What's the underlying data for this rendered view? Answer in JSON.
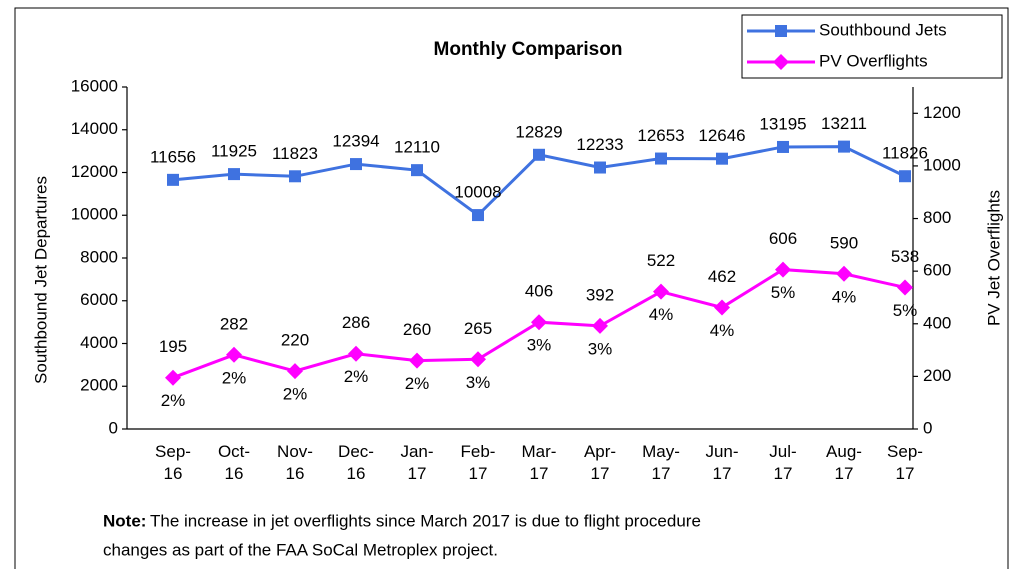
{
  "chart_data": {
    "type": "line",
    "title": "Monthly Comparison",
    "categories": [
      "Sep-16",
      "Oct-16",
      "Nov-16",
      "Dec-16",
      "Jan-17",
      "Feb-17",
      "Mar-17",
      "Apr-17",
      "May-17",
      "Jun-17",
      "Jul-17",
      "Aug-17",
      "Sep-17"
    ],
    "series": [
      {
        "name": "Southbound Jets",
        "color": "#3f72e0",
        "marker": "square",
        "values": [
          11656,
          11925,
          11823,
          12394,
          12110,
          10008,
          12829,
          12233,
          12653,
          12646,
          13195,
          13211,
          11826
        ]
      },
      {
        "name": "PV Overflights",
        "color": "#ff00ff",
        "marker": "diamond",
        "axis": "y2",
        "values": [
          195,
          282,
          220,
          286,
          260,
          265,
          406,
          392,
          522,
          462,
          606,
          590,
          538
        ],
        "share_labels": [
          "2%",
          "2%",
          "2%",
          "2%",
          "2%",
          "3%",
          "3%",
          "3%",
          "4%",
          "4%",
          "5%",
          "4%",
          "5%"
        ]
      }
    ],
    "ylabel": "Southbound Jet Departures",
    "y2label": "PV Jet Overflights",
    "ylim": [
      0,
      16000
    ],
    "yticks": [
      0,
      2000,
      4000,
      6000,
      8000,
      10000,
      12000,
      14000,
      16000
    ],
    "y2lim": [
      0,
      1300
    ],
    "y2ticks": [
      0,
      200,
      400,
      600,
      800,
      1000,
      1200
    ],
    "legend": "top-right",
    "note": {
      "label": "Note:",
      "lines": [
        "The increase in jet overflights since March 2017 is due to flight procedure",
        "changes as part of the FAA SoCal Metroplex project."
      ]
    }
  }
}
